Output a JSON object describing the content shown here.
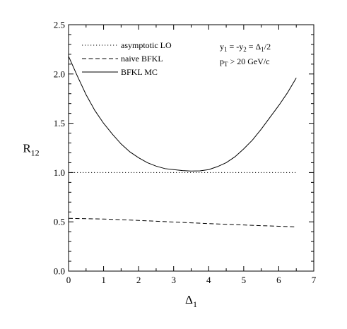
{
  "chart_data": {
    "type": "line",
    "xlabel": "Δ",
    "xlabel_sub": "1",
    "ylabel": "R",
    "ylabel_sub": "12",
    "xlim": [
      0,
      7
    ],
    "ylim": [
      0.0,
      2.5
    ],
    "x_ticks": [
      "0",
      "1",
      "2",
      "3",
      "4",
      "5",
      "6",
      "7"
    ],
    "y_ticks": [
      "0.0",
      "0.5",
      "1.0",
      "1.5",
      "2.0",
      "2.5"
    ],
    "grid": false,
    "legend_position": "top-left",
    "annotations": [
      {
        "parts": [
          {
            "t": "y",
            "s": "base"
          },
          {
            "t": "1",
            "s": "sub"
          },
          {
            "t": " = -y",
            "s": "base"
          },
          {
            "t": "2",
            "s": "sub"
          },
          {
            "t": " = Δ",
            "s": "base"
          },
          {
            "t": "1",
            "s": "sub"
          },
          {
            "t": "/2",
            "s": "base"
          }
        ]
      },
      {
        "parts": [
          {
            "t": "p",
            "s": "base"
          },
          {
            "t": "T",
            "s": "sub"
          },
          {
            "t": " > 20 GeV/c",
            "s": "base"
          }
        ]
      }
    ],
    "series": [
      {
        "name": "asymptotic LO",
        "style": "dotted",
        "x": [
          0,
          6.5
        ],
        "y": [
          1.0,
          1.0
        ]
      },
      {
        "name": "naive BFKL",
        "style": "dashed",
        "x": [
          0,
          0.5,
          1.0,
          1.5,
          2.0,
          2.5,
          3.0,
          3.5,
          4.0,
          4.5,
          5.0,
          5.5,
          6.0,
          6.5
        ],
        "y": [
          0.535,
          0.532,
          0.528,
          0.522,
          0.514,
          0.506,
          0.498,
          0.49,
          0.482,
          0.475,
          0.468,
          0.461,
          0.455,
          0.449
        ]
      },
      {
        "name": "BFKL MC",
        "style": "solid",
        "x": [
          0,
          0.25,
          0.5,
          0.75,
          1.0,
          1.25,
          1.5,
          1.75,
          2.0,
          2.25,
          2.5,
          2.75,
          3.0,
          3.25,
          3.5,
          3.75,
          4.0,
          4.25,
          4.5,
          4.75,
          5.0,
          5.25,
          5.5,
          5.75,
          6.0,
          6.25,
          6.5
        ],
        "y": [
          2.18,
          1.98,
          1.79,
          1.63,
          1.5,
          1.39,
          1.29,
          1.21,
          1.15,
          1.1,
          1.065,
          1.04,
          1.03,
          1.02,
          1.015,
          1.017,
          1.03,
          1.06,
          1.1,
          1.16,
          1.24,
          1.33,
          1.44,
          1.56,
          1.68,
          1.81,
          1.96
        ]
      }
    ]
  }
}
